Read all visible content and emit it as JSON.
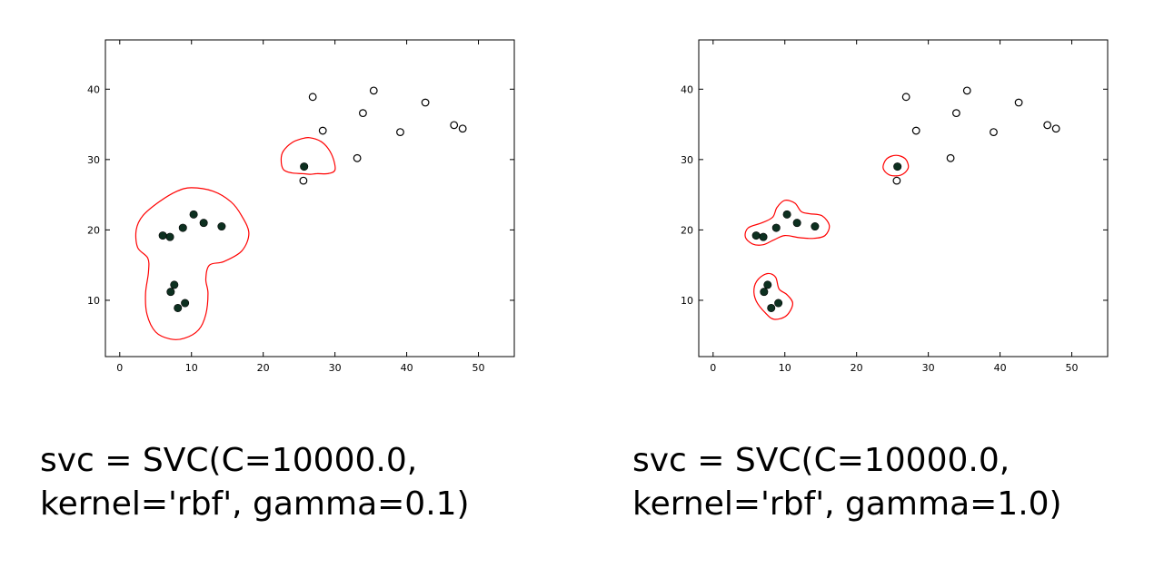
{
  "chart_data": [
    {
      "type": "scatter",
      "caption_line1": "svc = SVC(C=10000.0,",
      "caption_line2": "kernel='rbf', gamma=0.1)",
      "xlim": [
        -2,
        55
      ],
      "ylim": [
        2,
        47
      ],
      "xticks": [
        "0",
        "10",
        "20",
        "30",
        "40",
        "50"
      ],
      "yticks": [
        "10",
        "20",
        "30",
        "40"
      ],
      "grid": false,
      "series": [
        {
          "marker": "filled",
          "color": "#0d3020",
          "points": [
            [
              6,
              19.2
            ],
            [
              7,
              19
            ],
            [
              8.8,
              20.3
            ],
            [
              10.3,
              22.2
            ],
            [
              11.7,
              21
            ],
            [
              14.2,
              20.5
            ],
            [
              7.6,
              12.2
            ],
            [
              7.1,
              11.2
            ],
            [
              9.1,
              9.6
            ],
            [
              8.1,
              8.9
            ],
            [
              25.7,
              29
            ]
          ]
        },
        {
          "marker": "hollow",
          "color": "#000000",
          "points": [
            [
              25.6,
              27
            ],
            [
              26.9,
              38.9
            ],
            [
              28.3,
              34.1
            ],
            [
              33.1,
              30.2
            ],
            [
              33.9,
              36.6
            ],
            [
              35.4,
              39.8
            ],
            [
              39.1,
              33.9
            ],
            [
              42.6,
              38.1
            ],
            [
              46.6,
              34.9
            ],
            [
              47.8,
              34.4
            ]
          ]
        }
      ],
      "boundary_color": "#ff0000",
      "boundary": [
        [
          [
            10,
            26
          ],
          [
            13,
            25.5
          ],
          [
            15.5,
            24
          ],
          [
            17,
            22
          ],
          [
            18,
            19.5
          ],
          [
            17,
            17
          ],
          [
            14.5,
            15.5
          ],
          [
            12.5,
            15
          ],
          [
            12,
            13
          ],
          [
            12.3,
            11
          ],
          [
            12,
            8
          ],
          [
            11,
            5.8
          ],
          [
            9,
            4.6
          ],
          [
            7,
            4.5
          ],
          [
            5,
            5.5
          ],
          [
            3.8,
            8
          ],
          [
            3.6,
            11
          ],
          [
            4,
            14
          ],
          [
            3.9,
            16
          ],
          [
            2.5,
            17.5
          ],
          [
            2.3,
            20
          ],
          [
            3.2,
            22
          ],
          [
            5.5,
            24
          ],
          [
            8,
            25.5
          ],
          [
            10,
            26
          ]
        ],
        [
          [
            26.5,
            33.1
          ],
          [
            28,
            32.6
          ],
          [
            29.1,
            31.5
          ],
          [
            29.8,
            30
          ],
          [
            30,
            28.5
          ],
          [
            29,
            28
          ],
          [
            27.5,
            28
          ],
          [
            26.5,
            27.9
          ],
          [
            25.5,
            28
          ],
          [
            24,
            28.1
          ],
          [
            22.8,
            28.6
          ],
          [
            22.5,
            30
          ],
          [
            22.8,
            31.2
          ],
          [
            24,
            32.4
          ],
          [
            25.5,
            33
          ],
          [
            26.5,
            33.1
          ]
        ]
      ]
    },
    {
      "type": "scatter",
      "caption_line1": "svc = SVC(C=10000.0,",
      "caption_line2": "kernel='rbf', gamma=1.0)",
      "xlim": [
        -2,
        55
      ],
      "ylim": [
        2,
        47
      ],
      "xticks": [
        "0",
        "10",
        "20",
        "30",
        "40",
        "50"
      ],
      "yticks": [
        "10",
        "20",
        "30",
        "40"
      ],
      "grid": false,
      "series": [
        {
          "marker": "filled",
          "color": "#0d3020",
          "points": [
            [
              6,
              19.2
            ],
            [
              7,
              19
            ],
            [
              8.8,
              20.3
            ],
            [
              10.3,
              22.2
            ],
            [
              11.7,
              21
            ],
            [
              14.2,
              20.5
            ],
            [
              7.6,
              12.2
            ],
            [
              7.1,
              11.2
            ],
            [
              9.1,
              9.6
            ],
            [
              8.1,
              8.9
            ],
            [
              25.7,
              29
            ]
          ]
        },
        {
          "marker": "hollow",
          "color": "#000000",
          "points": [
            [
              25.6,
              27
            ],
            [
              26.9,
              38.9
            ],
            [
              28.3,
              34.1
            ],
            [
              33.1,
              30.2
            ],
            [
              33.9,
              36.6
            ],
            [
              35.4,
              39.8
            ],
            [
              39.1,
              33.9
            ],
            [
              42.6,
              38.1
            ],
            [
              46.6,
              34.9
            ],
            [
              47.8,
              34.4
            ]
          ]
        }
      ],
      "boundary_color": "#ff0000",
      "boundary": [
        [
          [
            10,
            24.2
          ],
          [
            11.4,
            23.8
          ],
          [
            12.3,
            22.6
          ],
          [
            13.5,
            22.3
          ],
          [
            15.2,
            22
          ],
          [
            16.2,
            20.6
          ],
          [
            15.6,
            19.2
          ],
          [
            14,
            18.8
          ],
          [
            12,
            18.9
          ],
          [
            10,
            19.2
          ],
          [
            8.5,
            18.6
          ],
          [
            7,
            17.9
          ],
          [
            5.5,
            18
          ],
          [
            4.5,
            19
          ],
          [
            4.9,
            20.3
          ],
          [
            6.8,
            21
          ],
          [
            8.3,
            21.8
          ],
          [
            8.9,
            23.2
          ],
          [
            10,
            24.2
          ]
        ],
        [
          [
            7.6,
            13.8
          ],
          [
            8.7,
            13.3
          ],
          [
            9.2,
            11.6
          ],
          [
            10.3,
            10.8
          ],
          [
            11.1,
            9.5
          ],
          [
            10.2,
            7.8
          ],
          [
            8.5,
            7.3
          ],
          [
            7.3,
            8.2
          ],
          [
            6,
            9.9
          ],
          [
            5.7,
            11.6
          ],
          [
            6.3,
            13
          ],
          [
            7.6,
            13.8
          ]
        ],
        [
          [
            25.5,
            30.6
          ],
          [
            26.8,
            30.1
          ],
          [
            27.2,
            28.8
          ],
          [
            26.2,
            27.8
          ],
          [
            24.6,
            27.8
          ],
          [
            23.7,
            28.8
          ],
          [
            24.2,
            30.1
          ],
          [
            25.5,
            30.6
          ]
        ]
      ]
    }
  ]
}
